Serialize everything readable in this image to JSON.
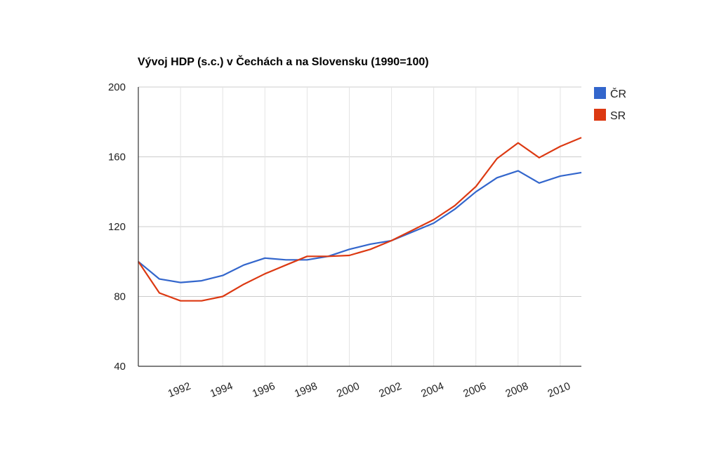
{
  "chart_data": {
    "type": "line",
    "title": "Vývoj HDP (s.c.) v Čechách a na Slovensku (1990=100)",
    "xlabel": "",
    "ylabel": "",
    "xlim": [
      1990,
      2011
    ],
    "ylim": [
      40,
      200
    ],
    "yticks": [
      40,
      80,
      120,
      160,
      200
    ],
    "xticks": [
      1992,
      1994,
      1996,
      1998,
      2000,
      2002,
      2004,
      2006,
      2008,
      2010
    ],
    "grid": true,
    "legend_position": "right-top",
    "x": [
      1990,
      1991,
      1992,
      1993,
      1994,
      1995,
      1996,
      1997,
      1998,
      1999,
      2000,
      2001,
      2002,
      2003,
      2004,
      2005,
      2006,
      2007,
      2008,
      2009,
      2010,
      2011
    ],
    "series": [
      {
        "name": "ČR",
        "color": "#3366cc",
        "values": [
          100,
          90,
          88,
          89,
          92,
          98,
          102,
          101,
          101,
          103,
          107,
          110,
          112,
          117,
          122,
          130,
          140,
          148,
          152,
          145,
          149,
          151
        ]
      },
      {
        "name": "SR",
        "color": "#dc3912",
        "values": [
          100,
          82,
          77.5,
          77.5,
          80,
          87,
          93,
          98,
          103,
          103,
          103.5,
          107,
          112,
          118,
          124,
          132,
          143,
          159,
          168,
          159.5,
          166,
          171
        ]
      }
    ]
  }
}
